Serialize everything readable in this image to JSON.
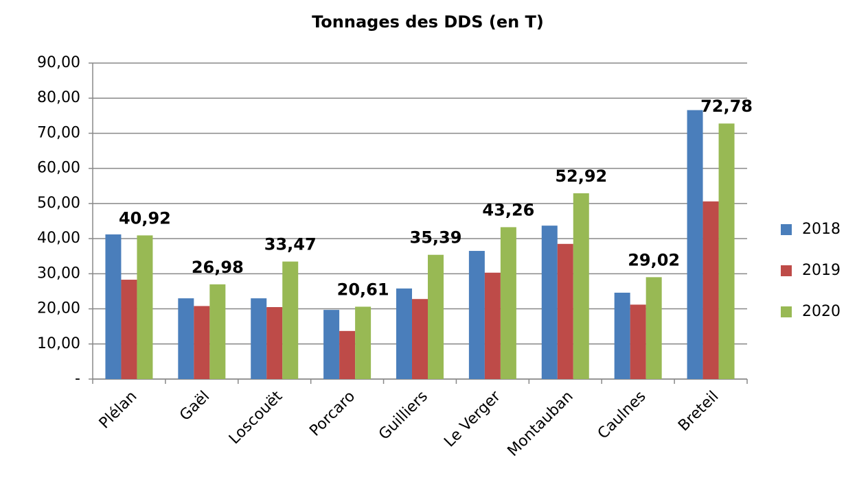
{
  "chart_data": {
    "type": "bar",
    "title": "Tonnages des DDS (en T)",
    "categories": [
      "Plélan",
      "Gaël",
      "Loscouët",
      "Porcaro",
      "Guilliers",
      "Le Verger",
      "Montauban",
      "Caulnes",
      "Breteil"
    ],
    "series": [
      {
        "name": "2018",
        "color": "#4a7ebb",
        "values": [
          41.2,
          23.0,
          23.0,
          19.7,
          25.8,
          36.5,
          43.7,
          24.6,
          76.6
        ]
      },
      {
        "name": "2019",
        "color": "#be4b48",
        "values": [
          28.3,
          20.8,
          20.5,
          13.7,
          22.8,
          30.3,
          38.5,
          21.2,
          50.6
        ]
      },
      {
        "name": "2020",
        "color": "#98b954",
        "values": [
          40.92,
          26.98,
          33.47,
          20.61,
          35.39,
          43.26,
          52.92,
          29.02,
          72.78
        ],
        "value_labels": [
          "40,92",
          "26,98",
          "33,47",
          "20,61",
          "35,39",
          "43,26",
          "52,92",
          "29,02",
          "72,78"
        ]
      }
    ],
    "ylim": [
      0,
      90
    ],
    "yticks": [
      {
        "value": 0,
        "label": "-"
      },
      {
        "value": 10,
        "label": "10,00"
      },
      {
        "value": 20,
        "label": "20,00"
      },
      {
        "value": 30,
        "label": "30,00"
      },
      {
        "value": 40,
        "label": "40,00"
      },
      {
        "value": 50,
        "label": "50,00"
      },
      {
        "value": 60,
        "label": "60,00"
      },
      {
        "value": 70,
        "label": "70,00"
      },
      {
        "value": 80,
        "label": "80,00"
      },
      {
        "value": 90,
        "label": "90,00"
      }
    ],
    "grid": true,
    "legend": "right"
  }
}
